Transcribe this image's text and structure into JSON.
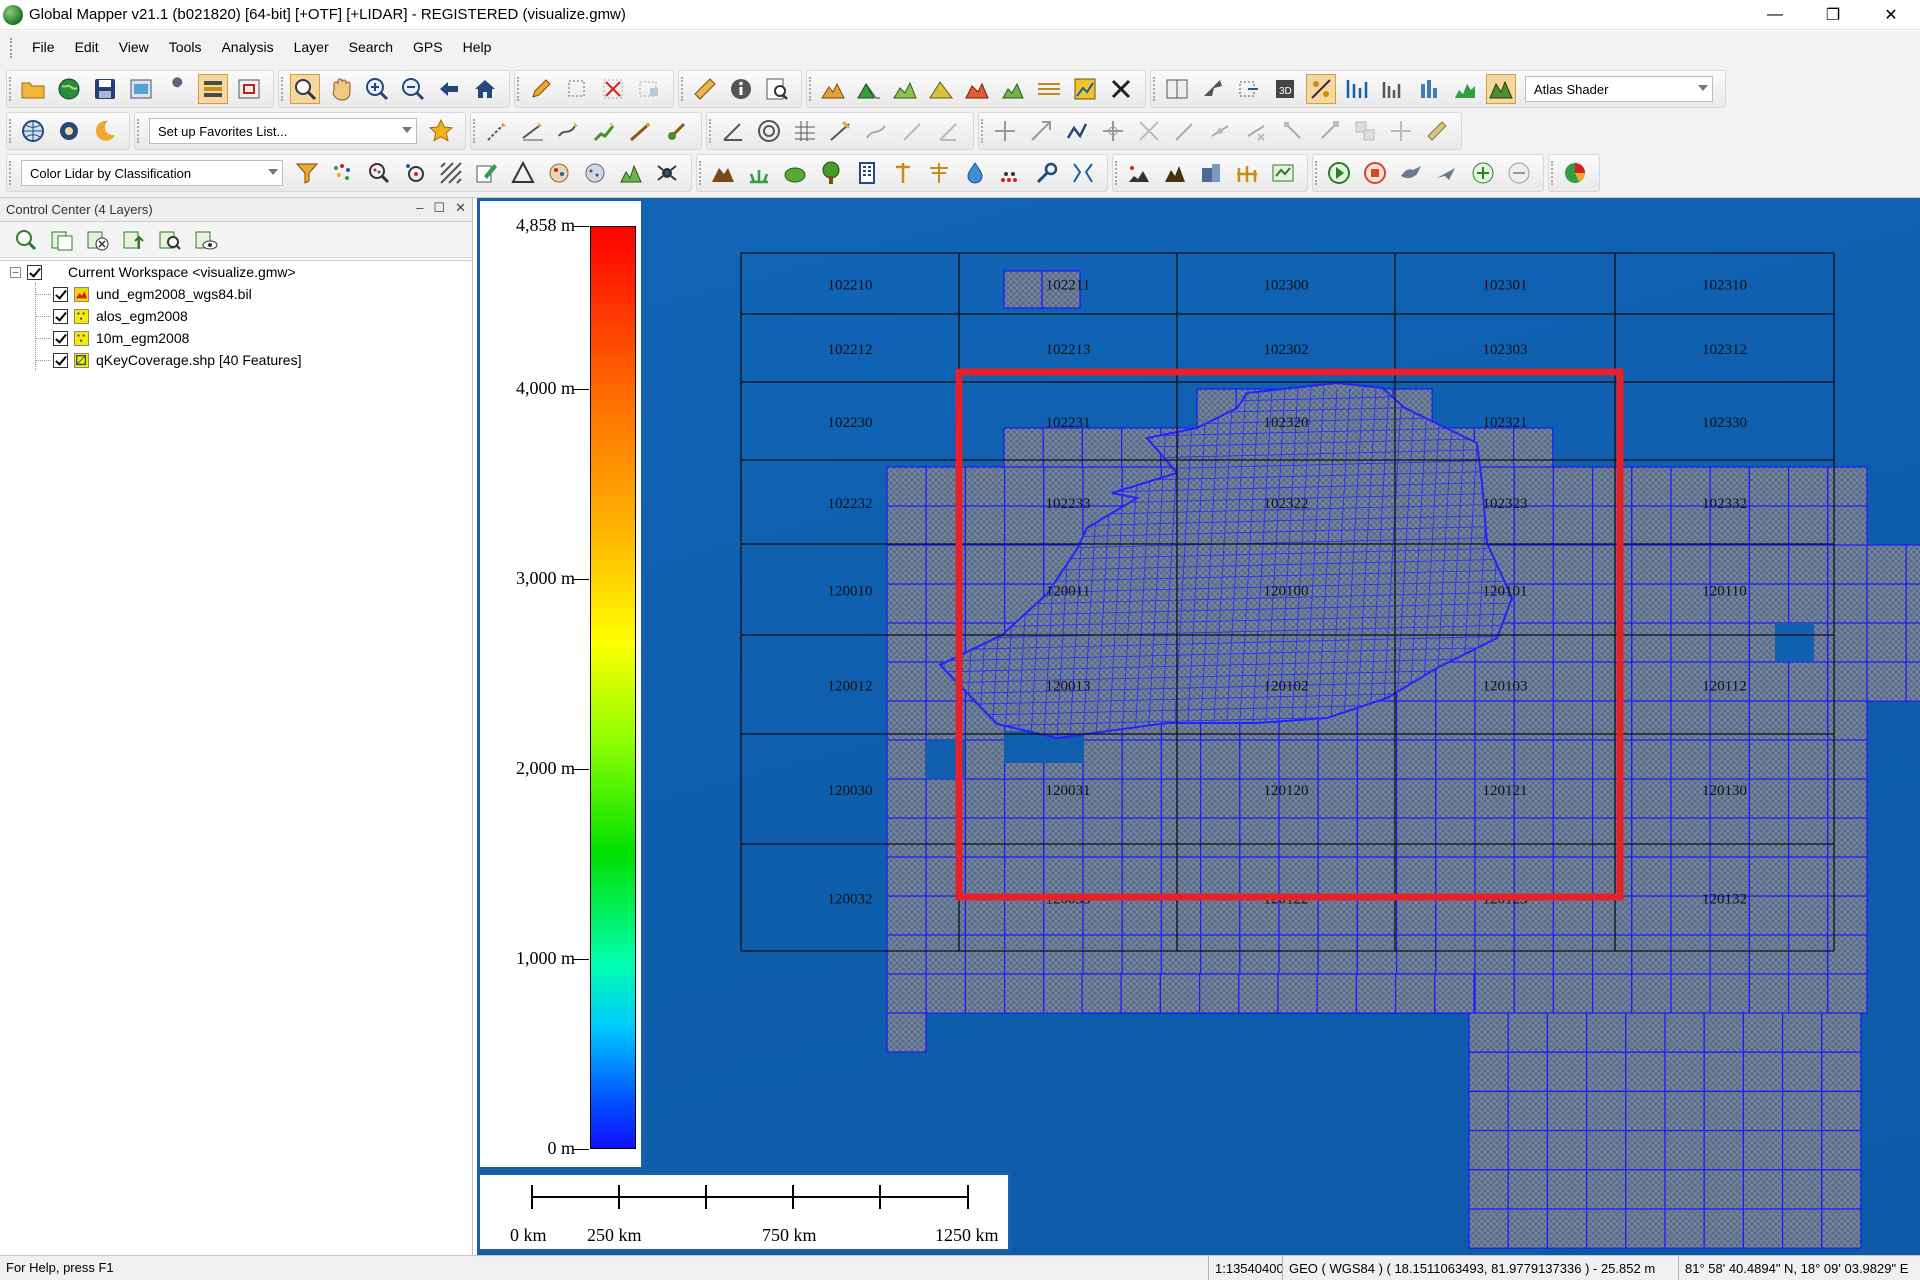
{
  "window": {
    "title": "Global Mapper v21.1 (b021820) [64-bit] [+OTF] [+LIDAR] - REGISTERED (visualize.gmw)",
    "minimize": "—",
    "maximize": "❐",
    "close": "✕"
  },
  "menu": [
    "File",
    "Edit",
    "View",
    "Tools",
    "Analysis",
    "Layer",
    "Search",
    "GPS",
    "Help"
  ],
  "toolbar": {
    "shader_select": "Atlas Shader",
    "favorites_select": "Set up Favorites List...",
    "lidar_select": "Color Lidar by Classification"
  },
  "control_center": {
    "title": "Control Center (4 Layers)",
    "workspace": "Current Workspace <visualize.gmw>",
    "layers": [
      {
        "name": "und_egm2008_wgs84.bil",
        "icon_color": "#f5d800"
      },
      {
        "name": "alos_egm2008",
        "icon_color": "#f5ec00"
      },
      {
        "name": "10m_egm2008",
        "icon_color": "#f5ec00"
      },
      {
        "name": "qKeyCoverage.shp [40 Features]",
        "icon_color": "#f5ec00"
      }
    ]
  },
  "legend": {
    "labels": [
      "4,858 m",
      "4,000 m",
      "3,000 m",
      "2,000 m",
      "1,000 m",
      "0 m"
    ],
    "values": [
      4858,
      4000,
      3000,
      2000,
      1000,
      0
    ],
    "max": 4858
  },
  "scalebar": {
    "labels": [
      "0 km",
      "250 km",
      "750 km",
      "1250 km"
    ]
  },
  "map": {
    "tile_labels": [
      [
        "102210",
        "102211",
        "102300",
        "102301",
        "102310"
      ],
      [
        "102212",
        "102213",
        "102302",
        "102303",
        "102312"
      ],
      [
        "102230",
        "102231",
        "102320",
        "102321",
        "102330"
      ],
      [
        "102232",
        "102233",
        "102322",
        "102323",
        "102332"
      ],
      [
        "120010",
        "120011",
        "120100",
        "120101",
        "120110"
      ],
      [
        "120012",
        "120013",
        "120102",
        "120103",
        "120112"
      ],
      [
        "120030",
        "120031",
        "120120",
        "120121",
        "120130"
      ],
      [
        "120032",
        "120033",
        "120122",
        "120123",
        "120132"
      ]
    ],
    "colors": {
      "background": "#0f5fae",
      "cell_fill": "#5a6e8e",
      "cell_stroke": "#1a1aff",
      "selection": "#e8202a"
    }
  },
  "status": {
    "help": "For Help, press F1",
    "scale": "1:13540400",
    "coords": "GEO ( WGS84 ) ( 18.1511063493, 81.9779137336 ) - 25.852 m",
    "dms": "81° 58' 40.4894\" N, 18° 09' 03.9829\" E"
  }
}
